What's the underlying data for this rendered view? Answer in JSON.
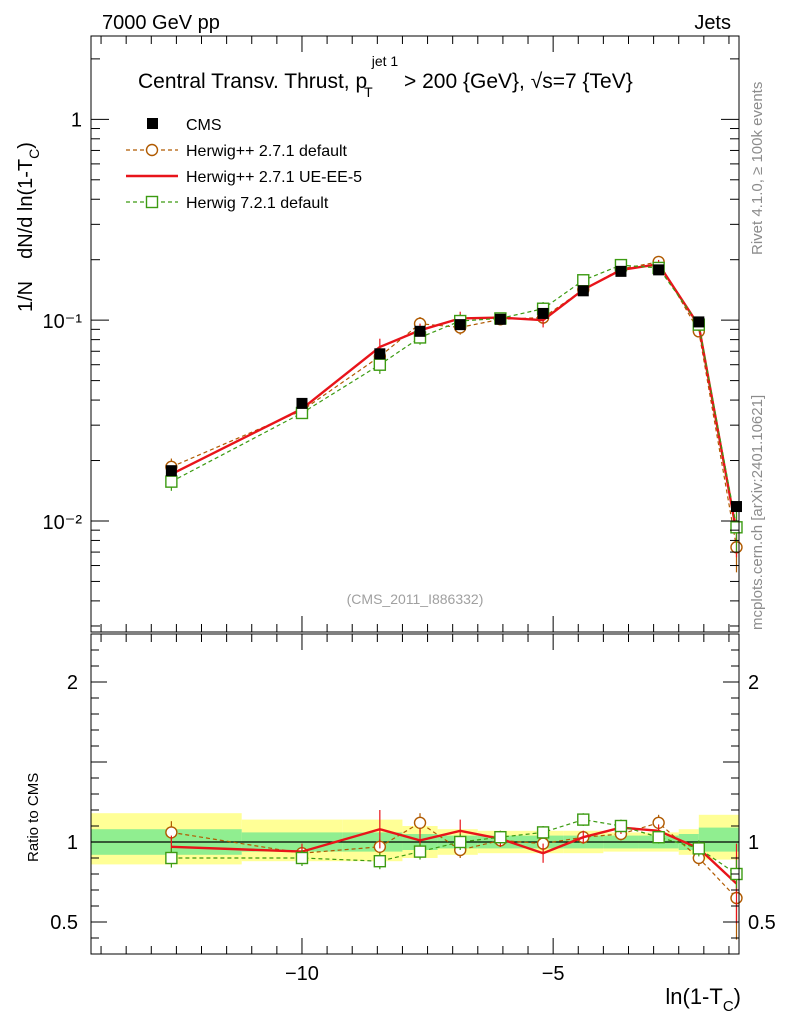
{
  "header": {
    "left": "7000 GeV pp",
    "right": "Jets"
  },
  "side_labels": {
    "rivet": "Rivet 4.1.0, ≥ 100k events",
    "mcplots": "mcplots.cern.ch [arXiv:2401.10621]"
  },
  "watermark": "(CMS_2011_I886332)",
  "title": {
    "main": "Central Transv. Thrust, p",
    "sub": "T",
    "sup": "jet 1",
    "rest": " > 200 {GeV}, √s=7 {TeV}"
  },
  "y_label": {
    "a": "1/N",
    "b": "dN/d ln(1-T",
    "sub": "C",
    "c": ")"
  },
  "x_label": {
    "a": "ln(1-T",
    "sub": "C",
    "c": ")"
  },
  "ratio_label": "Ratio to CMS",
  "legend": [
    {
      "label": "CMS",
      "color": "#000000",
      "style": "square-filled"
    },
    {
      "label": "Herwig++ 2.7.1 default",
      "color": "#b05a00",
      "style": "circle-open-dashed"
    },
    {
      "label": "Herwig++ 2.7.1 UE-EE-5",
      "color": "#e8141a",
      "style": "solid-line"
    },
    {
      "label": "Herwig 7.2.1 default",
      "color": "#3c9b12",
      "style": "square-open-dashed"
    }
  ],
  "chart_data": {
    "type": "line",
    "x_axis": {
      "range": [
        -14.2,
        -1.3
      ],
      "ticks": [
        -10,
        -5
      ],
      "tick_labels": [
        "−10",
        "−5"
      ]
    },
    "y_axis": {
      "scale": "log",
      "range": [
        0.0028,
        2.6
      ],
      "tick_labels": [
        "1",
        "10⁻¹",
        "10⁻²"
      ]
    },
    "ratio_axis": {
      "range": [
        0.3,
        2.3
      ],
      "ticks": [
        0.5,
        1,
        2
      ],
      "tick_labels": [
        "0.5",
        "1",
        "2"
      ]
    },
    "bins": [
      {
        "lo": -14.2,
        "hi": -11.2,
        "x": -12.6
      },
      {
        "lo": -11.2,
        "hi": -9.2,
        "x": -10.0
      },
      {
        "lo": -9.2,
        "hi": -8.0,
        "x": -8.45
      },
      {
        "lo": -8.0,
        "hi": -7.3,
        "x": -7.65
      },
      {
        "lo": -7.3,
        "hi": -6.5,
        "x": -6.85
      },
      {
        "lo": -6.5,
        "hi": -5.6,
        "x": -6.05
      },
      {
        "lo": -5.6,
        "hi": -4.8,
        "x": -5.2
      },
      {
        "lo": -4.8,
        "hi": -4.0,
        "x": -4.4
      },
      {
        "lo": -4.0,
        "hi": -3.3,
        "x": -3.65
      },
      {
        "lo": -3.3,
        "hi": -2.5,
        "x": -2.9
      },
      {
        "lo": -2.5,
        "hi": -2.1,
        "x": -2.1
      },
      {
        "lo": -2.1,
        "hi": -1.3,
        "x": -1.35
      }
    ],
    "band_bins": [
      {
        "lo": -14.2,
        "hi": -11.2,
        "g": [
          0.92,
          1.08
        ],
        "y": [
          0.86,
          1.18
        ]
      },
      {
        "lo": -11.2,
        "hi": -9.2,
        "g": [
          0.94,
          1.06
        ],
        "y": [
          0.88,
          1.14
        ]
      },
      {
        "lo": -9.2,
        "hi": -8.0,
        "g": [
          0.94,
          1.06
        ],
        "y": [
          0.88,
          1.14
        ]
      },
      {
        "lo": -8.0,
        "hi": -7.3,
        "g": [
          0.95,
          1.05
        ],
        "y": [
          0.9,
          1.1
        ]
      },
      {
        "lo": -7.3,
        "hi": -6.5,
        "g": [
          0.96,
          1.04
        ],
        "y": [
          0.92,
          1.08
        ]
      },
      {
        "lo": -6.5,
        "hi": -5.6,
        "g": [
          0.96,
          1.04
        ],
        "y": [
          0.93,
          1.07
        ]
      },
      {
        "lo": -5.6,
        "hi": -4.8,
        "g": [
          0.96,
          1.04
        ],
        "y": [
          0.93,
          1.07
        ]
      },
      {
        "lo": -4.8,
        "hi": -4.0,
        "g": [
          0.96,
          1.04
        ],
        "y": [
          0.93,
          1.07
        ]
      },
      {
        "lo": -4.0,
        "hi": -3.3,
        "g": [
          0.96,
          1.04
        ],
        "y": [
          0.94,
          1.06
        ]
      },
      {
        "lo": -3.3,
        "hi": -2.5,
        "g": [
          0.96,
          1.04
        ],
        "y": [
          0.94,
          1.06
        ]
      },
      {
        "lo": -2.5,
        "hi": -2.1,
        "g": [
          0.95,
          1.05
        ],
        "y": [
          0.92,
          1.08
        ]
      },
      {
        "lo": -2.1,
        "hi": -1.3,
        "g": [
          0.94,
          1.09
        ],
        "y": [
          0.89,
          1.17
        ]
      }
    ],
    "cms": [
      0.0178,
      0.0385,
      0.068,
      0.088,
      0.095,
      0.101,
      0.108,
      0.14,
      0.175,
      0.178,
      0.098,
      0.0118
    ],
    "series": [
      {
        "name": "Herwig++ 2.7.1 default",
        "color": "#b05a00",
        "marker": "circle",
        "dash": true,
        "values": [
          0.0186,
          0.0355,
          0.066,
          0.096,
          0.092,
          0.101,
          0.103,
          0.142,
          0.18,
          0.195,
          0.088,
          0.0074
        ],
        "ratio": [
          1.06,
          0.93,
          0.97,
          1.12,
          0.95,
          1.01,
          0.99,
          1.03,
          1.05,
          1.12,
          0.9,
          0.65
        ],
        "ratio_err": [
          0.07,
          0.04,
          0.05,
          0.06,
          0.05,
          0.04,
          0.05,
          0.04,
          0.04,
          0.05,
          0.05,
          0.26
        ]
      },
      {
        "name": "Herwig++ 2.7.1 UE-EE-5",
        "color": "#e8141a",
        "marker": "none",
        "dash": false,
        "values": [
          0.0171,
          0.0362,
          0.0735,
          0.089,
          0.102,
          0.103,
          0.1,
          0.142,
          0.178,
          0.19,
          0.094,
          0.0088
        ],
        "ratio": [
          0.97,
          0.94,
          1.08,
          1.01,
          1.07,
          1.02,
          0.93,
          1.03,
          1.09,
          1.07,
          0.96,
          0.74
        ],
        "ratio_err": [
          0.07,
          0.05,
          0.12,
          0.07,
          0.07,
          0.05,
          0.06,
          0.04,
          0.04,
          0.04,
          0.04,
          0.25
        ]
      },
      {
        "name": "Herwig 7.2.1 default",
        "color": "#3c9b12",
        "marker": "square",
        "dash": true,
        "values": [
          0.0157,
          0.0345,
          0.06,
          0.082,
          0.099,
          0.102,
          0.114,
          0.158,
          0.188,
          0.182,
          0.095,
          0.0093
        ],
        "ratio": [
          0.9,
          0.9,
          0.88,
          0.94,
          1.0,
          1.03,
          1.06,
          1.14,
          1.1,
          1.03,
          0.96,
          0.8
        ],
        "ratio_err": [
          0.06,
          0.05,
          0.05,
          0.05,
          0.05,
          0.04,
          0.04,
          0.04,
          0.04,
          0.04,
          0.05,
          0.09
        ]
      }
    ]
  }
}
